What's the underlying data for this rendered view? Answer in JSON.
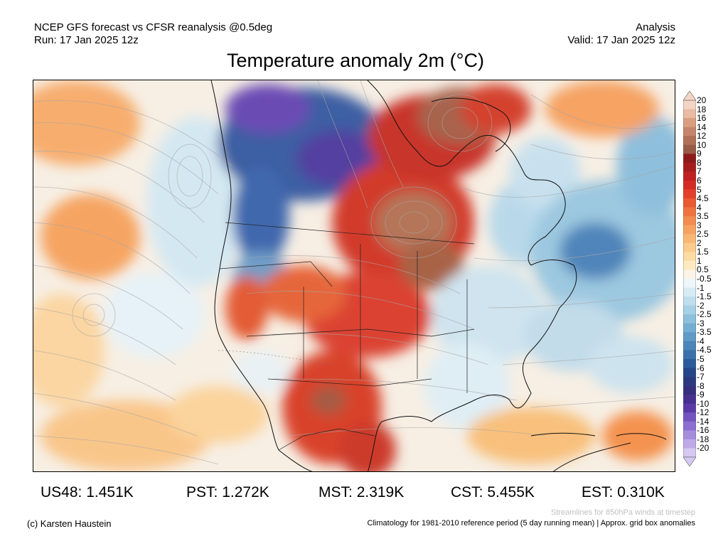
{
  "header": {
    "left_line1": "NCEP GFS forecast vs CFSR reanalysis @0.5deg",
    "left_line2": "Run: 17 Jan 2025 12z",
    "right_line1": "Analysis",
    "right_line2": "Valid: 17 Jan 2025 12z"
  },
  "title": "Temperature anomaly 2m (°C)",
  "colorbar": {
    "labels": [
      "20",
      "18",
      "16",
      "14",
      "12",
      "10",
      "9",
      "8",
      "7",
      "6",
      "5",
      "4.5",
      "4",
      "3.5",
      "3",
      "2.5",
      "2",
      "1.5",
      "1",
      "0.5",
      "-0.5",
      "-1",
      "-1.5",
      "-2",
      "-2.5",
      "-3",
      "-3.5",
      "-4",
      "-4.5",
      "-5",
      "-6",
      "-7",
      "-8",
      "-9",
      "-10",
      "-12",
      "-14",
      "-16",
      "-18",
      "-20"
    ],
    "colors": [
      "#f3d5c3",
      "#e8bba2",
      "#d99d80",
      "#c6856a",
      "#b06f57",
      "#9a5b46",
      "#8c1a1a",
      "#a61c1c",
      "#c0201f",
      "#d52b25",
      "#e2412c",
      "#ea5a33",
      "#ef7340",
      "#f38c4f",
      "#f6a360",
      "#f8b874",
      "#fbcb8b",
      "#fcdca3",
      "#fdeac0",
      "#faf3e6",
      "#eef6fa",
      "#d7ebf4",
      "#bfdeed",
      "#a6d0e5",
      "#8cc0dc",
      "#75aed2",
      "#5f9bc6",
      "#4b86b9",
      "#3a71aa",
      "#2b5b9b",
      "#26468a",
      "#2b3a80",
      "#352f7d",
      "#47308f",
      "#5a3aa6",
      "#7455c0",
      "#8c6fd0",
      "#a58cdd",
      "#bfaae8",
      "#d6c8f1"
    ]
  },
  "stats": [
    {
      "label": "US48:",
      "value": "1.451K"
    },
    {
      "label": "PST:",
      "value": "1.272K"
    },
    {
      "label": "MST:",
      "value": "2.319K"
    },
    {
      "label": "CST:",
      "value": "5.455K"
    },
    {
      "label": "EST:",
      "value": "0.310K"
    }
  ],
  "footer": {
    "streamlines_note": "Streamlines for 850hPa winds at timestep",
    "copyright": "(c) Karsten Haustein",
    "climatology_note": "Climatology for 1981-2010 reference period (5 day running mean) | Approx. grid box anomalies"
  }
}
